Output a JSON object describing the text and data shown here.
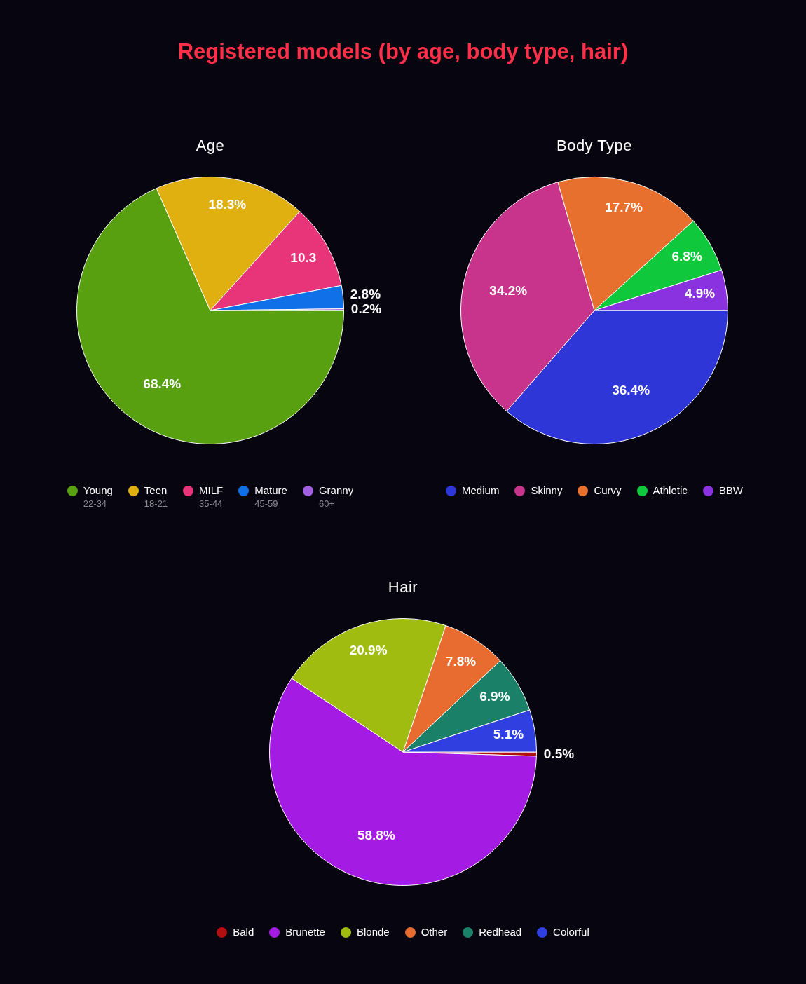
{
  "chart_data": [
    {
      "type": "pie",
      "title": "Age",
      "annotations": [
        "Registered models (by age, body type, hair)"
      ],
      "categories": [
        "Young\n22-34",
        "Teen\n18-21",
        "MILF\n35-44",
        "Mature\n45-59",
        "Granny\n60+"
      ],
      "values": [
        68.4,
        18.3,
        10.3,
        2.8,
        0.2
      ],
      "colors": [
        "#58a010",
        "#dfb010",
        "#e8357a",
        "#1070e8",
        "#a060e0"
      ],
      "value_labels": [
        "68.4%",
        "18.3%",
        "10.3",
        "2.8%",
        "0.2%"
      ],
      "legend": "bottom"
    },
    {
      "type": "pie",
      "title": "Body Type",
      "categories": [
        "Medium",
        "Skinny",
        "Curvy",
        "Athletic",
        "BBW"
      ],
      "values": [
        36.4,
        34.2,
        17.7,
        6.8,
        4.9
      ],
      "colors": [
        "#2e36d8",
        "#c8348c",
        "#e8702e",
        "#10c83c",
        "#8a32e0"
      ],
      "value_labels": [
        "36.4%",
        "34.2%",
        "17.7%",
        "6.8%",
        "4.9%"
      ],
      "legend": "bottom"
    },
    {
      "type": "pie",
      "title": "Hair",
      "categories": [
        "Bald",
        "Brunette",
        "Blonde",
        "Other",
        "Redhead",
        "Colorful"
      ],
      "values": [
        0.5,
        58.8,
        20.9,
        7.8,
        6.9,
        5.1
      ],
      "colors": [
        "#b01010",
        "#a41ce4",
        "#a0bc10",
        "#e86c30",
        "#1a8068",
        "#3040e0"
      ],
      "value_labels": [
        "0.5%",
        "58.8%",
        "20.9%",
        "7.8%",
        "6.9%",
        "5.1%"
      ],
      "legend": "bottom"
    }
  ]
}
